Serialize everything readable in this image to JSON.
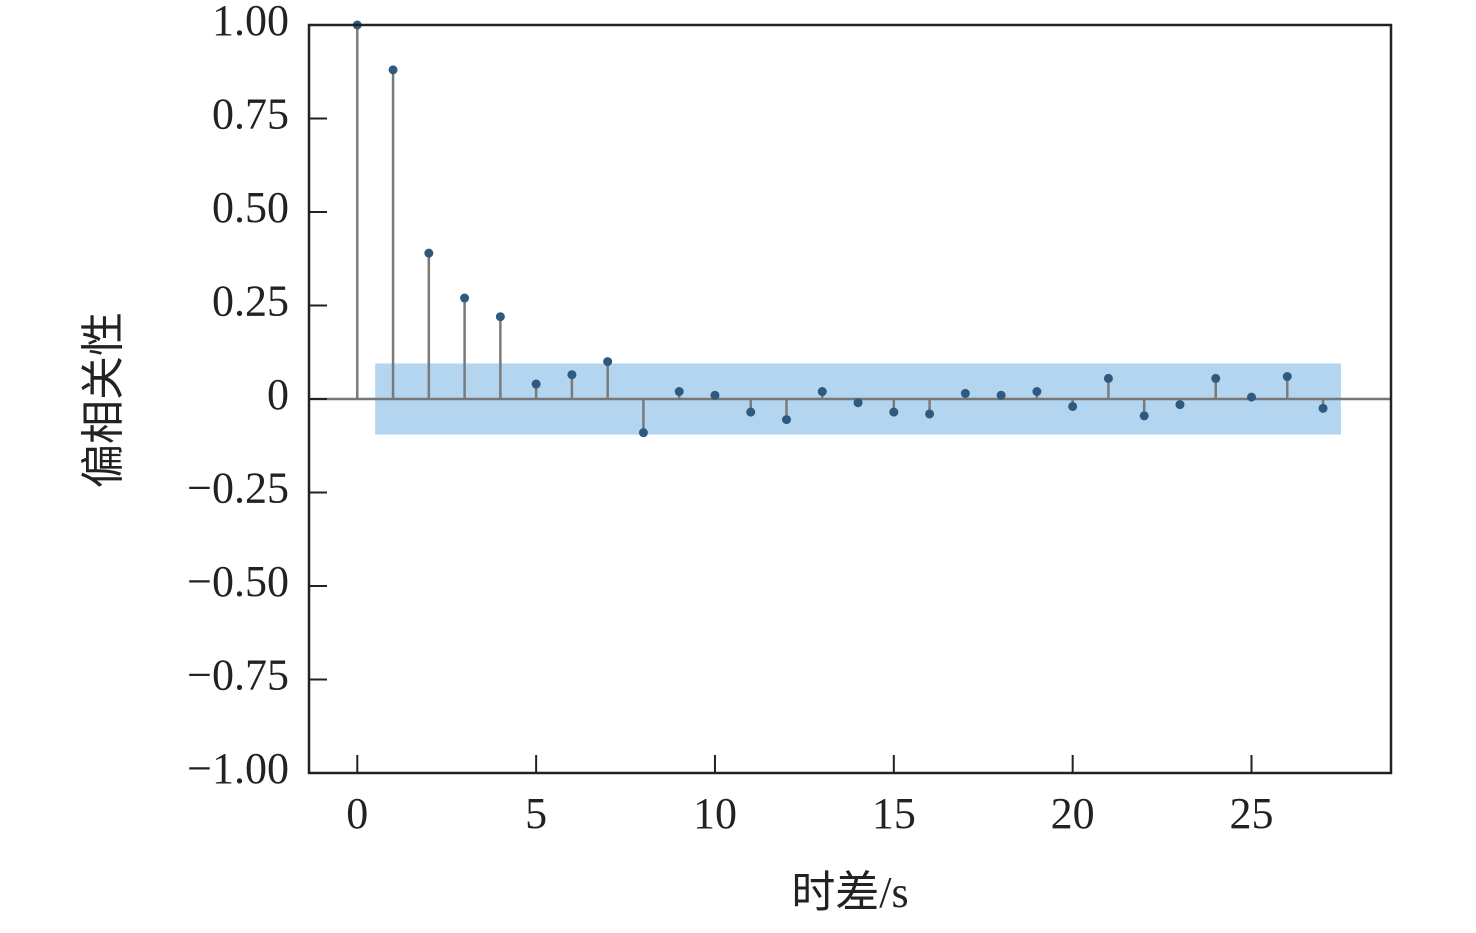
{
  "chart_data": {
    "type": "stem",
    "xlabel": "时差/s",
    "ylabel": "偏相关性",
    "x": [
      0,
      1,
      2,
      3,
      4,
      5,
      6,
      7,
      8,
      9,
      10,
      11,
      12,
      13,
      14,
      15,
      16,
      17,
      18,
      19,
      20,
      21,
      22,
      23,
      24,
      25,
      26,
      27
    ],
    "values": [
      1.0,
      0.88,
      0.39,
      0.27,
      0.22,
      0.04,
      0.065,
      0.1,
      -0.09,
      0.02,
      0.01,
      -0.035,
      -0.055,
      0.02,
      -0.01,
      -0.035,
      -0.04,
      0.015,
      0.01,
      0.02,
      -0.02,
      0.055,
      -0.045,
      -0.015,
      0.055,
      0.005,
      0.06,
      -0.025
    ],
    "color": "#2e5a80",
    "stem_color": "#7a7a7a",
    "confidence_band": {
      "x": [
        0.5,
        27.5
      ],
      "y": [
        -0.095,
        0.095
      ],
      "color": "#b3d5f0"
    },
    "xlim": [
      -1.35,
      28.9
    ],
    "ylim": [
      -1,
      1
    ],
    "xticks": [
      0,
      5,
      10,
      15,
      20,
      25
    ],
    "yticks": [
      {
        "value": 1,
        "label": "1.00"
      },
      0.75,
      {
        "value": 0.5,
        "label": "0.50"
      },
      0.25,
      0,
      {
        "value": -0.25,
        "label": "−0.25"
      },
      {
        "value": -0.5,
        "label": "−0.50"
      },
      {
        "value": -0.75,
        "label": "−0.75"
      },
      {
        "value": -1,
        "label": "−1.00"
      }
    ]
  }
}
